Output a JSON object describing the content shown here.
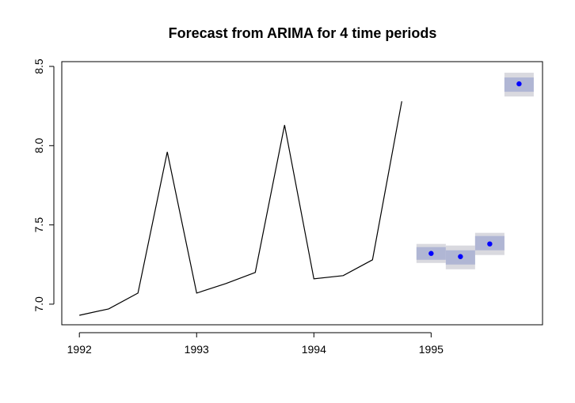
{
  "chart_data": {
    "type": "line",
    "title": "Forecast from ARIMA for 4 time periods",
    "xlabel": "",
    "ylabel": "",
    "xlim": [
      1991.85,
      1995.95
    ],
    "ylim": [
      6.87,
      8.53
    ],
    "x_ticks": [
      1992,
      1993,
      1994,
      1995
    ],
    "x_tick_labels": [
      "1992",
      "1993",
      "1994",
      "1995"
    ],
    "y_ticks": [
      7.0,
      7.5,
      8.0,
      8.5
    ],
    "y_tick_labels": [
      "7.0",
      "7.5",
      "8.0",
      "8.5"
    ],
    "grid": false,
    "legend": "none",
    "series": [
      {
        "kind": "observed",
        "color": "#000000",
        "x": [
          1992.0,
          1992.25,
          1992.5,
          1992.75,
          1993.0,
          1993.25,
          1993.5,
          1993.75,
          1994.0,
          1994.25,
          1994.5,
          1994.75
        ],
        "y": [
          6.93,
          6.97,
          7.07,
          7.96,
          7.07,
          7.13,
          7.2,
          8.13,
          7.16,
          7.18,
          7.28,
          8.28
        ]
      },
      {
        "kind": "forecast",
        "color": "#0000ff",
        "x": [
          1995.0,
          1995.25,
          1995.5,
          1995.75
        ],
        "y": [
          7.32,
          7.3,
          7.38,
          8.39
        ],
        "lo80": [
          7.28,
          7.25,
          7.34,
          8.34
        ],
        "hi80": [
          7.36,
          7.34,
          7.43,
          8.43
        ],
        "lo95": [
          7.26,
          7.22,
          7.31,
          8.31
        ],
        "hi95": [
          7.38,
          7.37,
          7.45,
          8.46
        ]
      }
    ],
    "band_colors": {
      "pi80": "#b0b6d4",
      "pi95": "#d9d9df"
    }
  }
}
